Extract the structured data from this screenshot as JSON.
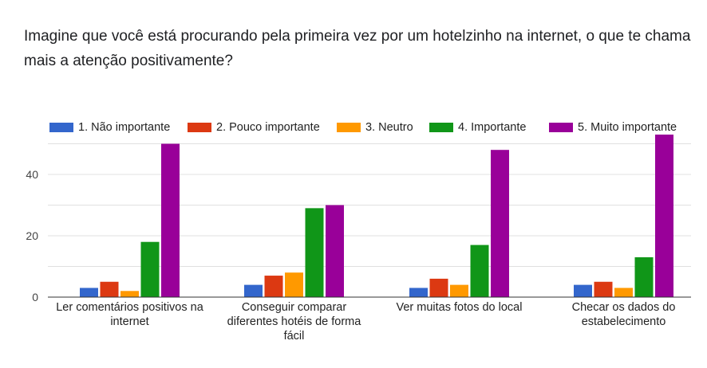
{
  "question": {
    "title": "Imagine que você está procurando pela primeira vez por um hotelzinho na internet, o que te chama mais a atenção positivamente?"
  },
  "chart_data": {
    "type": "bar",
    "categories": [
      [
        "Ler comentários positivos na",
        "internet"
      ],
      [
        "Conseguir comparar",
        "diferentes hotéis de forma",
        "fácil"
      ],
      [
        "Ver muitas fotos do local"
      ],
      [
        "Checar os dados do",
        "estabelecimento"
      ]
    ],
    "series": [
      {
        "name": "1. Não importante",
        "color": "#3366cc",
        "values": [
          3,
          4,
          3,
          4
        ]
      },
      {
        "name": "2. Pouco importante",
        "color": "#dc3912",
        "values": [
          5,
          7,
          6,
          5
        ]
      },
      {
        "name": "3. Neutro",
        "color": "#ff9900",
        "values": [
          2,
          8,
          4,
          3
        ]
      },
      {
        "name": "4. Importante",
        "color": "#109618",
        "values": [
          18,
          29,
          17,
          13
        ]
      },
      {
        "name": "5. Muito importante",
        "color": "#990099",
        "values": [
          50,
          30,
          48,
          53
        ]
      }
    ],
    "yticks": [
      0,
      20,
      40
    ],
    "ylim": [
      0,
      54
    ],
    "grid": true,
    "legend_position": "top"
  }
}
